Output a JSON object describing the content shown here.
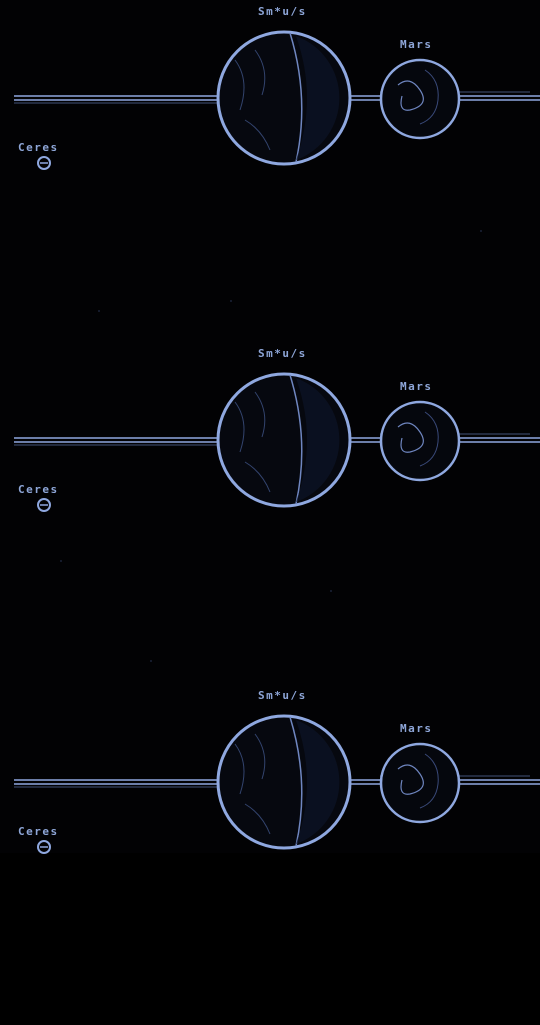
{
  "panels": [
    {
      "label_top": "Sm*u/s",
      "label_right": "Mars",
      "label_left": "Ceres"
    },
    {
      "label_top": "Sm*u/s",
      "label_right": "Mars",
      "label_left": "Ceres"
    },
    {
      "label_top": "Sm*u/s",
      "label_right": "Mars",
      "label_left": "Ceres"
    }
  ],
  "colors": {
    "background": "#020204",
    "outline": "#8fa8e0",
    "outline_dim": "#3a4a7a",
    "label": "#8ea6d8"
  }
}
